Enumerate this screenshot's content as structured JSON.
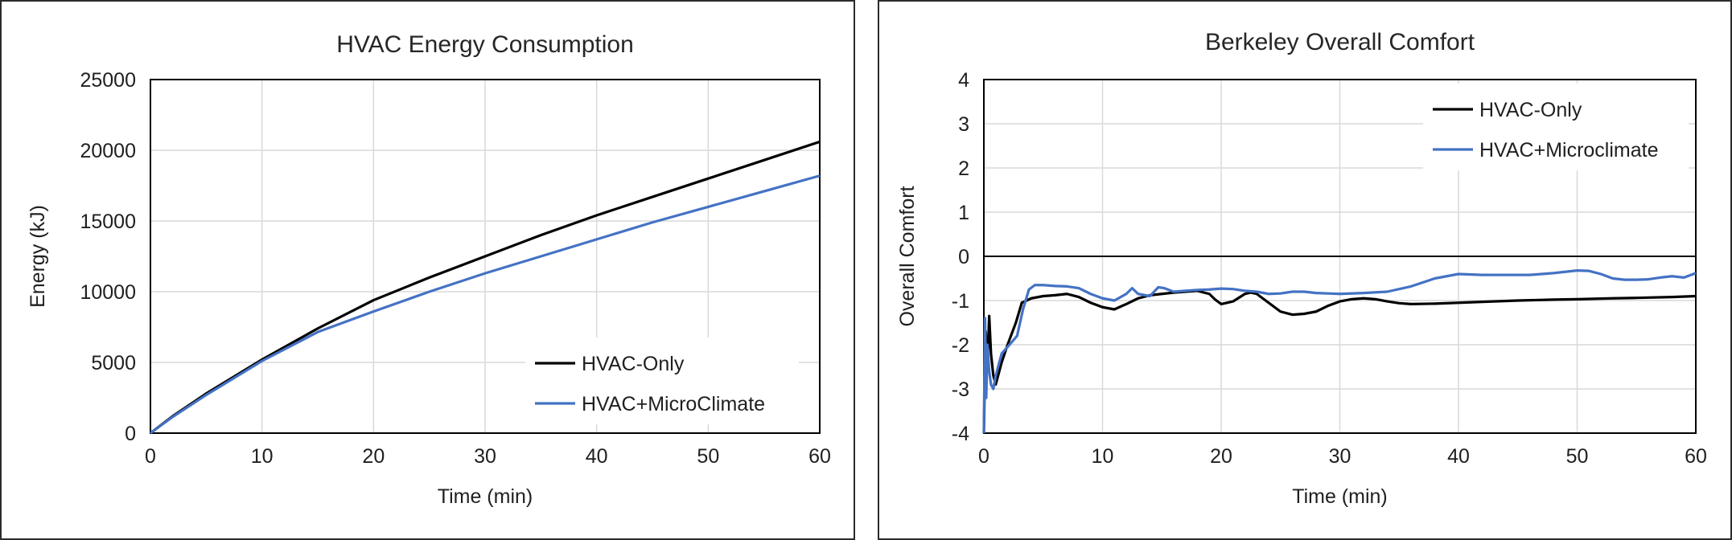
{
  "chart_data": [
    {
      "type": "line",
      "title": "HVAC Energy Consumption",
      "xlabel": "Time (min)",
      "ylabel": "Energy (kJ)",
      "xlim": [
        0,
        60
      ],
      "ylim": [
        0,
        25000
      ],
      "xticks": [
        "0",
        "10",
        "20",
        "30",
        "40",
        "50",
        "60"
      ],
      "yticks": [
        "0",
        "5000",
        "10000",
        "15000",
        "20000",
        "25000"
      ],
      "grid": true,
      "legend_position": "bottom-right",
      "series": [
        {
          "name": "HVAC-Only",
          "color": "#000000",
          "x": [
            0,
            2,
            5,
            10,
            15,
            20,
            25,
            30,
            35,
            40,
            45,
            50,
            55,
            60
          ],
          "y": [
            0,
            1200,
            2800,
            5200,
            7400,
            9400,
            11000,
            12500,
            14000,
            15400,
            16700,
            18000,
            19300,
            20600
          ]
        },
        {
          "name": "HVAC+MicroClimate",
          "color": "#4472C4",
          "x": [
            0,
            2,
            5,
            10,
            15,
            20,
            25,
            30,
            35,
            40,
            45,
            50,
            55,
            60
          ],
          "y": [
            0,
            1150,
            2700,
            5100,
            7150,
            8600,
            10000,
            11300,
            12500,
            13700,
            14900,
            16000,
            17100,
            18200
          ]
        }
      ]
    },
    {
      "type": "line",
      "title": "Berkeley Overall Comfort",
      "xlabel": "Time (min)",
      "ylabel": "Overall Comfort",
      "xlim": [
        0,
        60
      ],
      "ylim": [
        -4,
        4
      ],
      "xticks": [
        "0",
        "10",
        "20",
        "30",
        "40",
        "50",
        "60"
      ],
      "yticks": [
        "-4",
        "-3",
        "-2",
        "-1",
        "0",
        "1",
        "2",
        "3",
        "4"
      ],
      "grid": true,
      "legend_position": "top-right",
      "series": [
        {
          "name": "HVAC-Only",
          "color": "#000000",
          "x": [
            0,
            0.15,
            0.3,
            0.45,
            0.6,
            0.8,
            1.0,
            1.5,
            2.0,
            2.7,
            3.2,
            4.0,
            5.0,
            6.0,
            7.0,
            8.0,
            9.0,
            10.0,
            11.0,
            12.0,
            13.0,
            14.0,
            15.0,
            16.0,
            17.0,
            18.0,
            19.0,
            19.5,
            20.0,
            21.0,
            22.0,
            22.5,
            23.0,
            24.0,
            25.0,
            26.0,
            27.0,
            28.0,
            29.0,
            30.0,
            31.0,
            32.0,
            33.0,
            34.0,
            35.0,
            36.0,
            38.0,
            40.0,
            42.0,
            45.0,
            48.0,
            50.0,
            53.0,
            55.0,
            58.0,
            60.0
          ],
          "y": [
            -4.0,
            -1.7,
            -2.5,
            -1.35,
            -2.2,
            -2.7,
            -2.9,
            -2.4,
            -2.0,
            -1.5,
            -1.05,
            -0.95,
            -0.9,
            -0.88,
            -0.85,
            -0.92,
            -1.05,
            -1.15,
            -1.2,
            -1.08,
            -0.95,
            -0.88,
            -0.85,
            -0.82,
            -0.8,
            -0.78,
            -0.85,
            -0.98,
            -1.08,
            -1.02,
            -0.85,
            -0.82,
            -0.85,
            -1.05,
            -1.25,
            -1.32,
            -1.3,
            -1.25,
            -1.12,
            -1.02,
            -0.97,
            -0.95,
            -0.97,
            -1.02,
            -1.06,
            -1.08,
            -1.07,
            -1.05,
            -1.03,
            -1.0,
            -0.98,
            -0.97,
            -0.95,
            -0.94,
            -0.92,
            -0.9
          ]
        },
        {
          "name": "HVAC+Microclimate",
          "color": "#4472C4",
          "x": [
            0,
            0.1,
            0.2,
            0.3,
            0.45,
            0.6,
            0.8,
            1.0,
            1.5,
            2.0,
            2.8,
            3.3,
            3.8,
            4.3,
            5.0,
            6.0,
            7.0,
            8.0,
            9.0,
            10.0,
            11.0,
            12.0,
            12.5,
            13.0,
            14.0,
            14.7,
            15.2,
            16.0,
            17.0,
            18.0,
            19.0,
            20.0,
            21.0,
            22.0,
            23.0,
            24.0,
            25.0,
            26.0,
            27.0,
            28.0,
            29.0,
            30.0,
            32.0,
            34.0,
            36.0,
            38.0,
            40.0,
            42.0,
            44.0,
            46.0,
            48.0,
            50.0,
            51.0,
            52.0,
            53.0,
            54.0,
            55.0,
            56.0,
            57.0,
            58.0,
            59.0,
            60.0
          ],
          "y": [
            -4.0,
            -1.4,
            -3.2,
            -2.0,
            -2.6,
            -2.9,
            -3.0,
            -2.7,
            -2.2,
            -2.05,
            -1.8,
            -1.2,
            -0.75,
            -0.65,
            -0.65,
            -0.67,
            -0.68,
            -0.72,
            -0.85,
            -0.95,
            -1.0,
            -0.85,
            -0.72,
            -0.85,
            -0.9,
            -0.7,
            -0.72,
            -0.8,
            -0.78,
            -0.76,
            -0.75,
            -0.73,
            -0.74,
            -0.78,
            -0.8,
            -0.85,
            -0.84,
            -0.8,
            -0.8,
            -0.83,
            -0.84,
            -0.85,
            -0.83,
            -0.8,
            -0.68,
            -0.5,
            -0.4,
            -0.42,
            -0.42,
            -0.42,
            -0.38,
            -0.32,
            -0.33,
            -0.4,
            -0.5,
            -0.53,
            -0.53,
            -0.52,
            -0.48,
            -0.45,
            -0.48,
            -0.38
          ]
        }
      ]
    }
  ]
}
